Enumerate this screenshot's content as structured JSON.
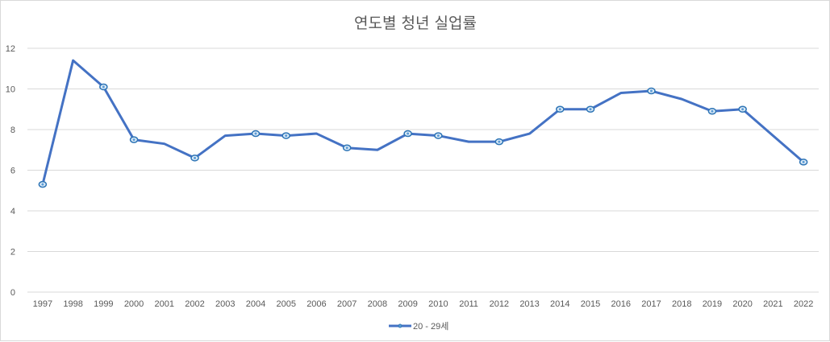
{
  "chart_data": {
    "type": "line",
    "title": "연도별 청년 실업률",
    "xlabel": "",
    "ylabel": "",
    "ylim": [
      0,
      12
    ],
    "yticks": [
      0,
      2,
      4,
      6,
      8,
      10,
      12
    ],
    "grid": true,
    "legend_position": "bottom",
    "categories": [
      "1997",
      "1998",
      "1999",
      "2000",
      "2001",
      "2002",
      "2003",
      "2004",
      "2005",
      "2006",
      "2007",
      "2008",
      "2009",
      "2010",
      "2011",
      "2012",
      "2013",
      "2014",
      "2015",
      "2016",
      "2017",
      "2018",
      "2019",
      "2020",
      "2021",
      "2022"
    ],
    "series": [
      {
        "name": "20 - 29세",
        "color": "#4472c4",
        "values": [
          5.3,
          11.4,
          10.1,
          7.5,
          7.3,
          6.6,
          7.7,
          7.8,
          7.7,
          7.8,
          7.1,
          7.0,
          7.8,
          7.7,
          7.4,
          7.4,
          7.8,
          9.0,
          9.0,
          9.8,
          9.9,
          9.5,
          8.9,
          9.0,
          7.7,
          6.4
        ],
        "marked": [
          true,
          false,
          true,
          true,
          false,
          true,
          false,
          true,
          true,
          false,
          true,
          false,
          true,
          true,
          false,
          true,
          false,
          true,
          true,
          false,
          true,
          false,
          true,
          true,
          false,
          true
        ]
      }
    ]
  }
}
